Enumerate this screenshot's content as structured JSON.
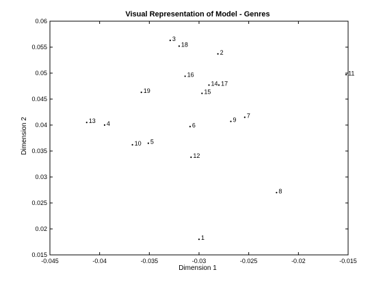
{
  "chart_data": {
    "type": "scatter",
    "title": "Visual Representation of Model - Genres",
    "xlabel": "Dimension 1",
    "ylabel": "Dimension 2",
    "xlim": [
      -0.045,
      -0.015
    ],
    "ylim": [
      0.015,
      0.06
    ],
    "xticks": [
      "-0.045",
      "-0.04",
      "-0.035",
      "-0.03",
      "-0.025",
      "-0.02",
      "-0.015"
    ],
    "xtick_values": [
      -0.045,
      -0.04,
      -0.035,
      -0.03,
      -0.025,
      -0.02,
      -0.015
    ],
    "yticks": [
      "0.015",
      "0.02",
      "0.025",
      "0.03",
      "0.035",
      "0.04",
      "0.045",
      "0.05",
      "0.055",
      "0.06"
    ],
    "ytick_values": [
      0.015,
      0.02,
      0.025,
      0.03,
      0.035,
      0.04,
      0.045,
      0.05,
      0.055,
      0.06
    ],
    "grid": false,
    "points": [
      {
        "label": "1",
        "x": -0.03,
        "y": 0.018
      },
      {
        "label": "2",
        "x": -0.0281,
        "y": 0.0537
      },
      {
        "label": "3",
        "x": -0.0329,
        "y": 0.0563
      },
      {
        "label": "4",
        "x": -0.0395,
        "y": 0.04
      },
      {
        "label": "5",
        "x": -0.0351,
        "y": 0.0365
      },
      {
        "label": "6",
        "x": -0.0309,
        "y": 0.0397
      },
      {
        "label": "7",
        "x": -0.0254,
        "y": 0.0415
      },
      {
        "label": "8",
        "x": -0.0222,
        "y": 0.027
      },
      {
        "label": "9",
        "x": -0.0268,
        "y": 0.0407
      },
      {
        "label": "10",
        "x": -0.0367,
        "y": 0.0362
      },
      {
        "label": "11",
        "x": -0.0152,
        "y": 0.0497
      },
      {
        "label": "12",
        "x": -0.0308,
        "y": 0.0338
      },
      {
        "label": "13",
        "x": -0.0413,
        "y": 0.0405
      },
      {
        "label": "14",
        "x": -0.029,
        "y": 0.0477
      },
      {
        "label": "15",
        "x": -0.0297,
        "y": 0.0461
      },
      {
        "label": "16",
        "x": -0.0314,
        "y": 0.0494
      },
      {
        "label": "17",
        "x": -0.028,
        "y": 0.0477
      },
      {
        "label": "18",
        "x": -0.032,
        "y": 0.0552
      },
      {
        "label": "19",
        "x": -0.0358,
        "y": 0.0463
      }
    ]
  }
}
